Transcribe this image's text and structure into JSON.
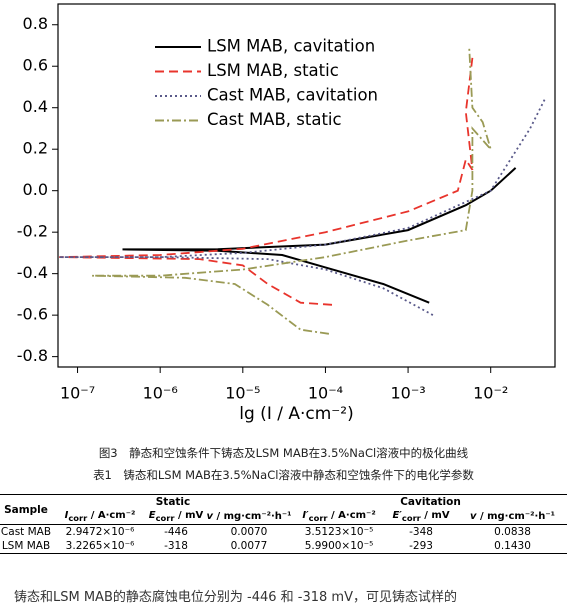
{
  "chart_data": {
    "type": "line",
    "xscale": "log",
    "xlabel": "lg (I / A·cm⁻²)",
    "xlim": [
      5.8e-08,
      0.06
    ],
    "ylim": [
      -0.85,
      0.9
    ],
    "xticks": [
      {
        "value": 1e-07,
        "label": "10⁻⁷"
      },
      {
        "value": 1e-06,
        "label": "10⁻⁶"
      },
      {
        "value": 1e-05,
        "label": "10⁻⁵"
      },
      {
        "value": 0.0001,
        "label": "10⁻⁴"
      },
      {
        "value": 0.001,
        "label": "10⁻³"
      },
      {
        "value": 0.01,
        "label": "10⁻²"
      }
    ],
    "yticks": [
      0.8,
      0.6,
      0.4,
      0.2,
      {
        "value": 0,
        "label": "0.0"
      },
      -0.2,
      -0.4,
      -0.6,
      -0.8
    ],
    "legend": "upper left",
    "series": [
      {
        "name": "LSM MAB, cavitation",
        "color": "#000000",
        "style": "solid",
        "x": [
          0.0018,
          0.0005,
          0.0001,
          3e-05,
          5e-06,
          3.5e-07,
          5e-06,
          0.0001,
          0.001,
          0.005,
          0.01,
          0.02
        ],
        "values": [
          -0.54,
          -0.45,
          -0.37,
          -0.31,
          -0.29,
          -0.283,
          -0.282,
          -0.26,
          -0.19,
          -0.07,
          0.0,
          0.11
        ]
      },
      {
        "name": "LSM MAB, static",
        "color": "#e8342c",
        "style": "dashed",
        "x": [
          0.00012,
          5e-05,
          2e-05,
          1e-05,
          3e-06,
          6e-08,
          1e-06,
          1e-05,
          0.0001,
          0.001,
          0.004,
          0.005,
          0.006,
          0.005,
          0.006
        ],
        "values": [
          -0.55,
          -0.54,
          -0.45,
          -0.36,
          -0.33,
          -0.32,
          -0.31,
          -0.28,
          -0.2,
          -0.1,
          0.0,
          0.15,
          0.1,
          0.38,
          0.64
        ]
      },
      {
        "name": "Cast MAB, cavitation",
        "color": "#5a5a8a",
        "style": "dotted",
        "x": [
          0.002,
          0.0005,
          0.0001,
          2e-05,
          1e-06,
          6e-08,
          1e-06,
          1e-05,
          0.0001,
          0.001,
          0.01,
          0.03,
          0.045
        ],
        "values": [
          -0.6,
          -0.47,
          -0.38,
          -0.33,
          -0.32,
          -0.32,
          -0.32,
          -0.3,
          -0.26,
          -0.18,
          0.0,
          0.3,
          0.44
        ]
      },
      {
        "name": "Cast MAB, static",
        "color": "#9a9a55",
        "style": "dashdot",
        "x": [
          0.00011,
          5e-05,
          2e-05,
          8e-06,
          2e-06,
          1.5e-07,
          1e-06,
          1e-05,
          0.0001,
          0.001,
          0.005,
          0.006,
          0.006,
          0.01,
          0.008,
          0.006,
          0.0055
        ],
        "values": [
          -0.69,
          -0.67,
          -0.55,
          -0.45,
          -0.42,
          -0.41,
          -0.41,
          -0.38,
          -0.32,
          -0.24,
          -0.19,
          0.0,
          0.3,
          0.2,
          0.33,
          0.4,
          0.69
        ]
      }
    ]
  },
  "captions": {
    "figure": "图3　静态和空蚀条件下铸态及LSM MAB在3.5%NaCl溶液中的极化曲线",
    "table": "表1　铸态和LSM MAB在3.5%NaCl溶液中静态和空蚀条件下的电化学参数"
  },
  "table": {
    "header": {
      "sample": "Sample",
      "static": "Static",
      "cavitation": "Cavitation",
      "columns": [
        {
          "symbol": "I",
          "sub": "corr",
          "unit": " / A·cm⁻²"
        },
        {
          "symbol": "E",
          "sub": "corr",
          "unit": " / mV"
        },
        {
          "symbol": "v",
          "sub": "",
          "unit": " / mg·cm⁻²·h⁻¹"
        },
        {
          "symbol": "I′",
          "sub": "corr",
          "unit": " / A·cm⁻²"
        },
        {
          "symbol": "E′",
          "sub": "corr",
          "unit": " / mV"
        },
        {
          "symbol": "v",
          "sub": "",
          "unit": " / mg·cm⁻²·h⁻¹"
        }
      ]
    },
    "rows": [
      [
        "Cast MAB",
        "2.9472×10⁻⁶",
        "-446",
        "0.0070",
        "3.5123×10⁻⁵",
        "-348",
        "0.0838"
      ],
      [
        "LSM MAB",
        "3.2265×10⁻⁶",
        "-318",
        "0.0077",
        "5.9900×10⁻⁵",
        "-293",
        "0.1430"
      ]
    ]
  },
  "body_text": "铸态和LSM MAB的静态腐蚀电位分别为 -446 和 -318 mV，可见铸态试样的"
}
